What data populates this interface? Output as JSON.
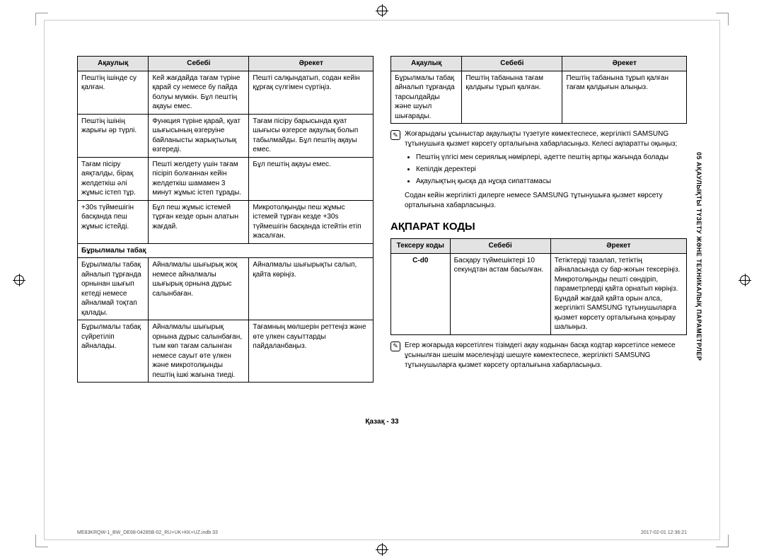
{
  "headers": {
    "problem": "Ақаулық",
    "cause": "Себебі",
    "action": "Әрекет"
  },
  "leftTable": {
    "rows": [
      {
        "p": "Пештің ішінде су қалған.",
        "c": "Кей жағдайда тағам түріне қарай су немесе бу пайда болуы мүмкін. Бұл пештің ақауы емес.",
        "a": "Пешті салқындатып, содан кейін құрғақ сүлгімен сүртіңіз."
      },
      {
        "p": "Пештің ішінің жарығы әр түрлі.",
        "c": "Функция түріне қарай, қуат шығысының өзгеруіне байланысты жарықтылық өзгереді.",
        "a": "Тағам пісіру барысында қуат шығысы өзгерсе ақаулық болып табылмайды. Бұл пештің ақауы емес."
      },
      {
        "p": "Тағам пісіру аяқталды, бірақ желдеткіш әлі жұмыс істеп тұр.",
        "c": "Пешті желдету үшін тағам пісіріп болғаннан кейін желдеткіш шамамен 3 минут жұмыс істеп тұрады.",
        "a": "Бұл пештің ақауы емес."
      },
      {
        "p": "+30s түймешігін басқанда пеш жұмыс істейді.",
        "c": "Бұл пеш жұмыс істемей тұрған кезде орын алатын жағдай.",
        "a": "Микротолқынды пеш жұмыс істемей тұрған кезде +30s түймешігін басқанда істейтін етіп жасалған."
      }
    ],
    "subhead": "Бұрылмалы табақ",
    "rows2": [
      {
        "p": "Бұрылмалы табақ айналып тұрғанда орнынан шығып кетеді немесе айналмай тоқтап қалады.",
        "c": "Айналмалы шығырық жоқ немесе айналмалы шығырық орнына дұрыс салынбаған.",
        "a": "Айналмалы шығырықты салып, қайта көріңіз."
      },
      {
        "p": "Бұрылмалы табақ сүйретіліп айналады.",
        "c": "Айналмалы шығырық орнына дұрыс салынбаған, тым көп тағам салынған немесе сауыт өте үлкен және микротолқынды пештің ішкі жағына тиеді.",
        "a": "Тағамның мөлшерін реттеңіз және өте үлкен сауыттарды пайдаланбаңыз."
      }
    ]
  },
  "rightTable": {
    "rows": [
      {
        "p": "Бұрылмалы табақ айналып тұрғанда тарсылдайды және шуыл шығарады.",
        "c": "Пештің табанына тағам қалдығы тұрып қалған.",
        "a": "Пештің табанына тұрып қалған тағам қалдығын алыңыз."
      }
    ]
  },
  "note1": {
    "lines": [
      "Жоғарыдағы ұсыныстар ақаулықты түзетуге көмектеспесе, жергілікті SAMSUNG тұтынушыға қызмет көрсету орталығына хабарласыңыз. Келесі ақпаратты оқыңыз;"
    ],
    "bullets": [
      "Пештің үлгісі мен сериялық нөмірлері, әдетте пештің артқы жағында болады",
      "Кепілдік деректері",
      "Ақаулықтың қысқа да нұсқа сипаттамасы"
    ],
    "after": "Содан кейін жергілікті дилерге немесе SAMSUNG тұтынушыға қызмет көрсету орталығына хабарласыңыз."
  },
  "sectionTitle": "АҚПАРАТ КОДЫ",
  "codeHeaders": {
    "code": "Тексеру коды",
    "cause": "Себебі",
    "action": "Әрекет"
  },
  "codeRows": [
    {
      "code": "C-d0",
      "cause": "Басқару түймешіктері 10 секундтан астам басылған.",
      "action": "Тетіктерді тазалап, тетіктің айналасында су бар-жоғын тексеріңіз. Микротолқынды пешті сөндіріп, параметрлерді қайта орнатып көріңіз. Бұндай жағдай қайта орын алса, жергілікті SAMSUNG тұтынушыларға қызмет көрсету орталығына қоңырау шалыңыз."
    }
  ],
  "note2": "Егер жоғарыда көрсетілген тізімдегі ақау кодынан басқа кодтар көрсетілсе немесе ұсынылған шешім мәселеңізді шешуге көмектеспесе, жергілікті SAMSUNG тұтынушыларға қызмет көрсету орталығына хабарласыңыз.",
  "sideLabel": "05  АҚАУЛЫҚТЫ ТҮЗЕТУ ЖӘНЕ ТЕХНИКАЛЫҚ ПАРАМЕТРЛЕР",
  "pageNum": "Қазақ - 33",
  "footerLeft": "ME83KRQW-1_BW_DE68-04285B-02_RU+UK+KK+UZ.indb   33",
  "footerRight": "2017-02-01    12:36:21"
}
